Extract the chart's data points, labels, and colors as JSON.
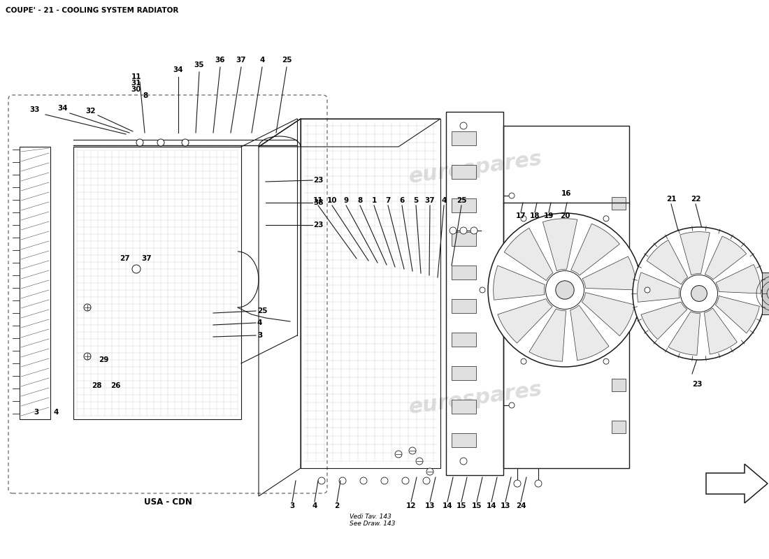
{
  "title": "COUPE' - 21 - COOLING SYSTEM RADIATOR",
  "title_fontsize": 8,
  "bg_color": "#ffffff",
  "text_color": "#000000",
  "watermark": "eurospares",
  "usa_cdn_label": "USA - CDN",
  "annotation_note": "Vedi Tav. 143\nSee Draw. 143"
}
